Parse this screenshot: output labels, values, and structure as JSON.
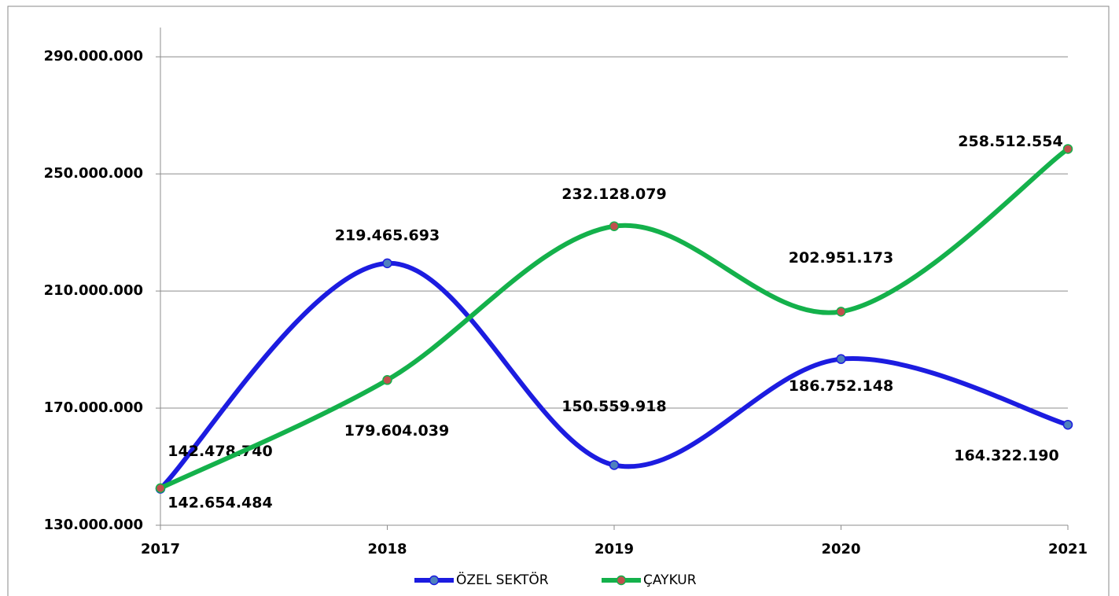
{
  "chart_data": {
    "type": "line",
    "categories": [
      "2017",
      "2018",
      "2019",
      "2020",
      "2021"
    ],
    "series": [
      {
        "name": "ÖZEL SEKTÖR",
        "color": "#1c1ce0",
        "values": [
          142478740,
          219465693,
          150559918,
          186752148,
          164322190
        ],
        "value_labels": [
          "142.478.740",
          "219.465.693",
          "150.559.918",
          "186.752.148",
          "164.322.190"
        ]
      },
      {
        "name": "ÇAYKUR",
        "color": "#14b14b",
        "values": [
          142654484,
          179604039,
          232128079,
          202951173,
          258512554
        ],
        "value_labels": [
          "142.654.484",
          "179.604.039",
          "232.128.079",
          "202.951.173",
          "258.512.554"
        ]
      }
    ],
    "ylim": [
      130000000,
      300000000
    ],
    "yticks": [
      {
        "value": 130000000,
        "label": "130.000.000"
      },
      {
        "value": 170000000,
        "label": "170.000.000"
      },
      {
        "value": 210000000,
        "label": "210.000.000"
      },
      {
        "value": 250000000,
        "label": "250.000.000"
      },
      {
        "value": 290000000,
        "label": "290.000.000"
      }
    ],
    "grid": true,
    "legend": "bottom"
  }
}
